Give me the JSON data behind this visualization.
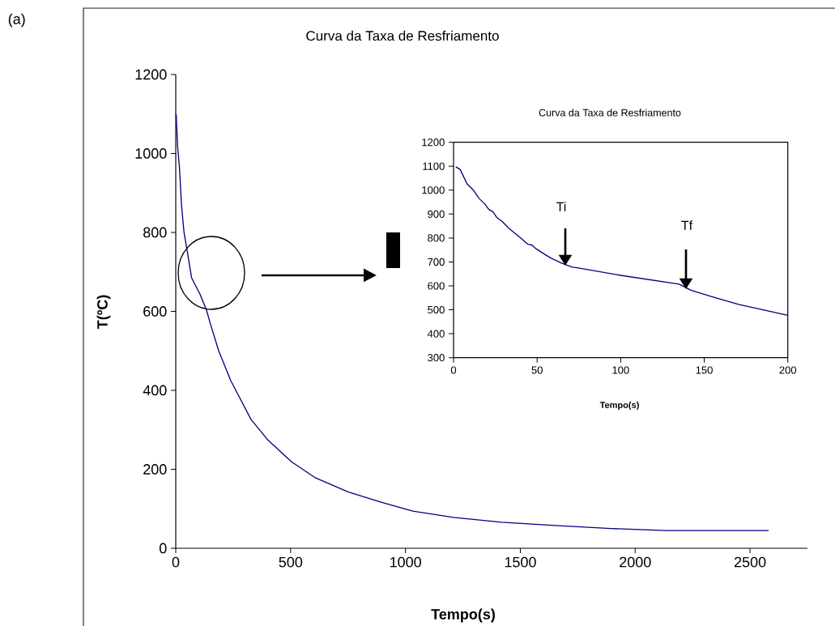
{
  "chart_data": [
    {
      "type": "line",
      "title": "Curva da Taxa de Resfriamento",
      "xlabel": "Tempo(s)",
      "ylabel": "T(ºC)",
      "annotations": [
        "(a)"
      ],
      "x": [
        2,
        8,
        16,
        25,
        36,
        52,
        69,
        105,
        134,
        151,
        187,
        239,
        327,
        398,
        504,
        609,
        750,
        891,
        1032,
        1208,
        1419,
        1665,
        1894,
        2132,
        2581
      ],
      "series": [
        {
          "color": "#000080",
          "values": [
            1099,
            1019,
            965,
            870,
            800,
            746,
            685,
            644,
            603,
            568,
            500,
            425,
            327,
            276,
            219,
            178,
            143,
            117,
            94,
            78,
            66,
            57,
            50,
            45,
            45
          ]
        }
      ],
      "xlim": [
        0,
        2750
      ],
      "ylim": [
        0,
        1200
      ],
      "xticks": [
        0,
        500,
        1000,
        1500,
        2000,
        2500
      ],
      "yticks": [
        0,
        200,
        400,
        600,
        800,
        1000,
        1200
      ]
    },
    {
      "type": "line",
      "title": "Curva da Taxa de Resfriamento",
      "xlabel": "Tempo(s)",
      "annotations": [
        "Ti",
        "Tf"
      ],
      "x": [
        1.3,
        4,
        8,
        12,
        15.3,
        18.6,
        21,
        23.6,
        25.8,
        29,
        33,
        38.8,
        44.4,
        46.8,
        49,
        54,
        58,
        64.6,
        71,
        74,
        100,
        135,
        139,
        142,
        155,
        171,
        187,
        200
      ],
      "series": [
        {
          "color": "#000080",
          "values": [
            1098,
            1086,
            1027,
            999,
            965,
            943,
            920,
            909,
            886,
            870,
            841,
            808,
            774,
            771,
            757,
            734,
            717,
            695,
            678,
            676,
            644,
            607,
            593,
            582,
            554,
            522,
            497,
            477
          ]
        }
      ],
      "xlim": [
        0,
        200
      ],
      "ylim": [
        300,
        1200
      ],
      "xticks": [
        0,
        50,
        100,
        150,
        200
      ],
      "yticks": [
        300,
        400,
        500,
        600,
        700,
        800,
        900,
        1000,
        1100,
        1200
      ]
    }
  ]
}
